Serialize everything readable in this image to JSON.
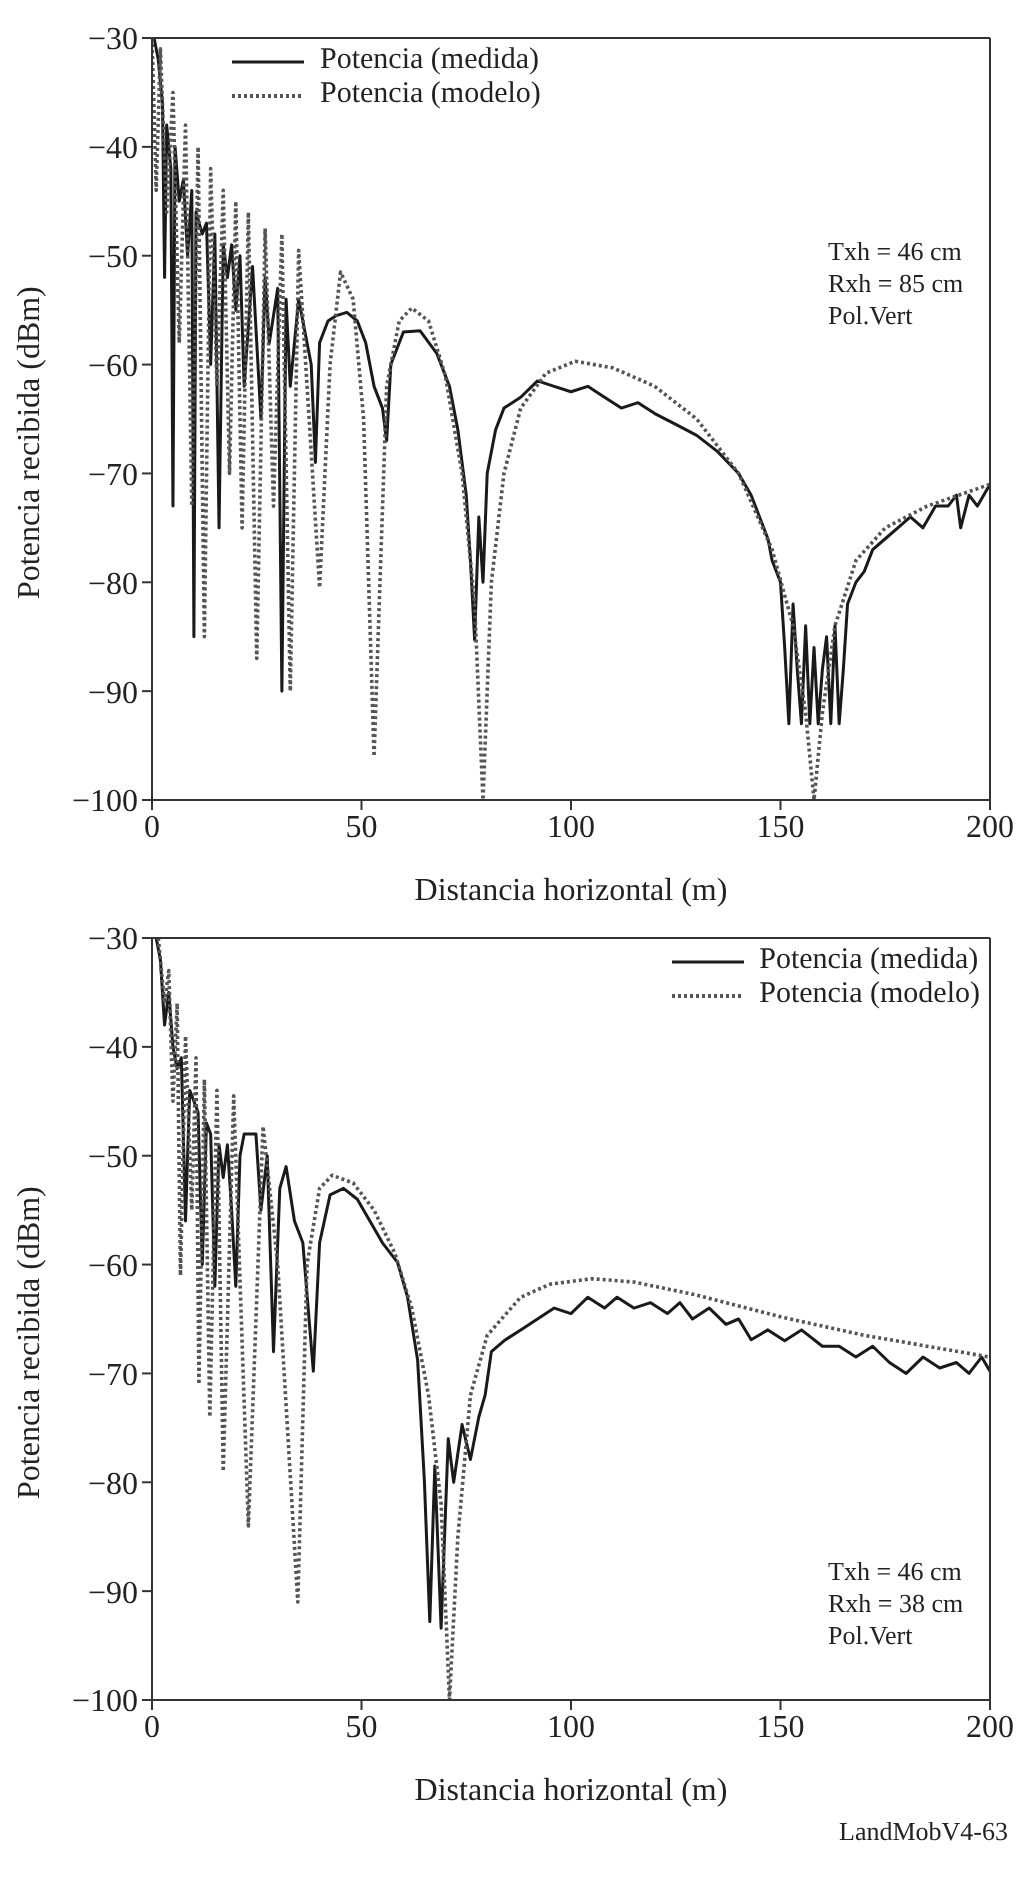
{
  "chart_data": [
    {
      "type": "line",
      "xlabel": "Distancia horizontal (m)",
      "ylabel": "Potencia recibida (dBm)",
      "xlim": [
        0,
        200
      ],
      "xticks": [
        0,
        50,
        100,
        150,
        200
      ],
      "ylim": [
        -100,
        -30
      ],
      "yticks": [
        -100,
        -90,
        -80,
        -70,
        -60,
        -50,
        -40,
        -30
      ],
      "legend": "top left",
      "marker": "none",
      "annotations": [
        "Txh = 46 cm",
        "Rxh = 85 cm",
        "Pol.Vert"
      ],
      "series": [
        {
          "name": "Potencia (medida)",
          "color": "#1a1a1a",
          "line_style": "solid",
          "x": [
            0.5,
            1.5,
            2.5,
            3,
            3.5,
            4.5,
            5,
            5.5,
            6.5,
            7.5,
            8.5,
            9.5,
            10,
            10.5,
            12,
            13,
            14,
            15,
            16,
            17,
            18,
            19,
            20,
            21,
            22,
            24,
            26,
            27,
            28,
            30,
            31,
            32,
            33,
            35,
            37,
            38,
            39,
            40,
            42,
            44,
            46.5,
            49,
            51,
            53,
            55,
            56,
            57,
            60,
            64,
            68,
            71,
            73,
            75,
            76,
            77,
            78,
            79,
            80,
            82,
            84,
            88,
            92,
            96,
            100,
            104,
            108,
            112,
            116,
            120,
            125,
            130,
            135,
            140,
            143,
            145,
            147,
            148,
            150,
            151,
            152,
            153,
            154,
            155,
            156,
            157,
            158,
            159,
            160,
            161,
            162,
            163,
            164,
            165,
            166,
            168,
            170,
            172,
            175,
            178,
            181,
            184,
            187,
            190,
            192,
            193,
            195,
            197,
            200
          ],
          "values": [
            -30,
            -32,
            -36,
            -52,
            -38,
            -42,
            -73,
            -40,
            -45,
            -43,
            -50,
            -44,
            -85,
            -46,
            -48,
            -47,
            -60,
            -48,
            -75,
            -49,
            -52,
            -49,
            -55,
            -50,
            -62,
            -51,
            -65,
            -52,
            -58,
            -53,
            -90,
            -54,
            -62,
            -54,
            -58,
            -60,
            -69,
            -58,
            -56,
            -55.5,
            -55.2,
            -56,
            -58,
            -62,
            -64,
            -67,
            -60,
            -57,
            -56.9,
            -59,
            -62,
            -66,
            -72,
            -78,
            -85.3,
            -74,
            -80,
            -70,
            -66,
            -64,
            -63,
            -61.5,
            -62,
            -62.5,
            -62,
            -63,
            -64,
            -63.5,
            -64.5,
            -65.5,
            -66.5,
            -68,
            -70,
            -72,
            -74,
            -76,
            -78,
            -80,
            -86,
            -93,
            -82,
            -88,
            -93,
            -84,
            -93,
            -86,
            -93,
            -88,
            -85,
            -93,
            -84,
            -93,
            -88,
            -82,
            -80,
            -79,
            -77,
            -76,
            -75,
            -74,
            -75,
            -73,
            -73,
            -72,
            -75,
            -72,
            -73,
            -71
          ]
        },
        {
          "name": "Potencia (modelo)",
          "color": "#555555",
          "line_style": "dotted",
          "x": [
            0,
            1,
            2,
            3.5,
            5,
            6.5,
            8,
            9.5,
            11,
            12.5,
            14,
            15.5,
            17,
            18.5,
            20,
            21.5,
            23,
            25,
            27,
            29,
            31,
            33,
            35,
            37.5,
            40,
            42.5,
            45,
            48,
            50.5,
            53,
            56,
            59,
            62,
            66,
            70,
            74,
            77,
            79,
            81,
            84,
            88,
            94,
            101,
            110,
            120,
            130,
            140,
            148,
            153,
            156,
            158,
            160,
            163,
            168,
            175,
            185,
            200
          ],
          "values": [
            -30,
            -44,
            -31,
            -46,
            -35,
            -58,
            -38,
            -73,
            -40,
            -85,
            -42,
            -62,
            -44,
            -70,
            -45,
            -75,
            -46,
            -87,
            -47.5,
            -73,
            -48,
            -90,
            -49.5,
            -65,
            -80.5,
            -60,
            -51.5,
            -54,
            -65,
            -96,
            -62,
            -56,
            -54.8,
            -56,
            -61,
            -70,
            -82,
            -100,
            -80,
            -70,
            -64,
            -60.8,
            -59.7,
            -60.3,
            -62,
            -65,
            -70,
            -77,
            -84,
            -92,
            -100,
            -92,
            -84,
            -78,
            -75,
            -73,
            -71
          ]
        }
      ]
    },
    {
      "type": "line",
      "xlabel": "Distancia horizontal (m)",
      "ylabel": "Potencia recibida (dBm)",
      "xlim": [
        0,
        200
      ],
      "xticks": [
        0,
        50,
        100,
        150,
        200
      ],
      "ylim": [
        -100,
        -30
      ],
      "yticks": [
        -100,
        -90,
        -80,
        -70,
        -60,
        -50,
        -40,
        -30
      ],
      "legend": "top right",
      "marker": "none",
      "annotations": [
        "Txh = 46 cm",
        "Rxh = 38 cm",
        "Pol.Vert",
        "LandMobV4-63"
      ],
      "series": [
        {
          "name": "Potencia (medida)",
          "color": "#1a1a1a",
          "line_style": "solid",
          "x": [
            1,
            2,
            3,
            4,
            5,
            6,
            7,
            8,
            9,
            10,
            11,
            12,
            13,
            14,
            15,
            16,
            17,
            18,
            19,
            20,
            21,
            22,
            24.8,
            26,
            27.5,
            29,
            30.5,
            32,
            34,
            36,
            38.5,
            40,
            42.5,
            45.7,
            49,
            52,
            55,
            58.6,
            61,
            63.4,
            65,
            66.3,
            67.5,
            69,
            70.7,
            72,
            74,
            76,
            78,
            79.5,
            81,
            84,
            88,
            92,
            96,
            100,
            104,
            108,
            111,
            115,
            119,
            123,
            126,
            129,
            133,
            137,
            140,
            143,
            147,
            151,
            155,
            160,
            164,
            168,
            172,
            176,
            180,
            184,
            188,
            192,
            195,
            198,
            200
          ],
          "values": [
            -30,
            -32,
            -38,
            -35,
            -40,
            -42,
            -41,
            -56,
            -44,
            -45,
            -46,
            -60,
            -47,
            -48,
            -62,
            -49,
            -52,
            -49,
            -55,
            -62,
            -50,
            -48,
            -48,
            -55,
            -50,
            -68,
            -53,
            -51,
            -56,
            -58,
            -69.8,
            -58,
            -53.6,
            -53,
            -54,
            -56,
            -58,
            -59.8,
            -63,
            -68.8,
            -79.8,
            -92.8,
            -78.5,
            -93.4,
            -76,
            -80,
            -74.7,
            -77.9,
            -74,
            -72,
            -68,
            -67,
            -66,
            -65,
            -64,
            -64.5,
            -63,
            -64,
            -63,
            -64,
            -63.5,
            -64.5,
            -63.5,
            -65,
            -64,
            -65.5,
            -65,
            -66.9,
            -66,
            -67,
            -66,
            -67.5,
            -67.5,
            -68.5,
            -67.5,
            -69,
            -70,
            -68.5,
            -69.5,
            -69,
            -70,
            -68.5,
            -69.8
          ]
        },
        {
          "name": "Potencia (modelo)",
          "color": "#555555",
          "line_style": "dotted",
          "x": [
            1.5,
            3,
            4,
            5,
            6,
            6.8,
            8,
            9.5,
            10.5,
            11.2,
            12.5,
            13.8,
            15.5,
            17,
            19.5,
            23,
            26.5,
            30,
            34.8,
            37,
            40,
            43,
            48,
            53,
            58,
            62,
            66,
            69,
            71,
            73,
            76,
            80,
            88,
            95,
            105,
            115,
            130,
            150,
            170,
            185,
            200
          ],
          "values": [
            -30,
            -36,
            -33,
            -45,
            -36,
            -61,
            -39,
            -55,
            -41,
            -71,
            -43,
            -74,
            -44,
            -79,
            -44.5,
            -84,
            -47.3,
            -60,
            -91,
            -60,
            -53,
            -51.8,
            -52.5,
            -55,
            -59,
            -64,
            -72,
            -82,
            -100,
            -85,
            -72,
            -66.5,
            -63,
            -61.8,
            -61.3,
            -61.6,
            -62.8,
            -64.8,
            -66.5,
            -67.5,
            -68.5
          ]
        }
      ]
    }
  ]
}
